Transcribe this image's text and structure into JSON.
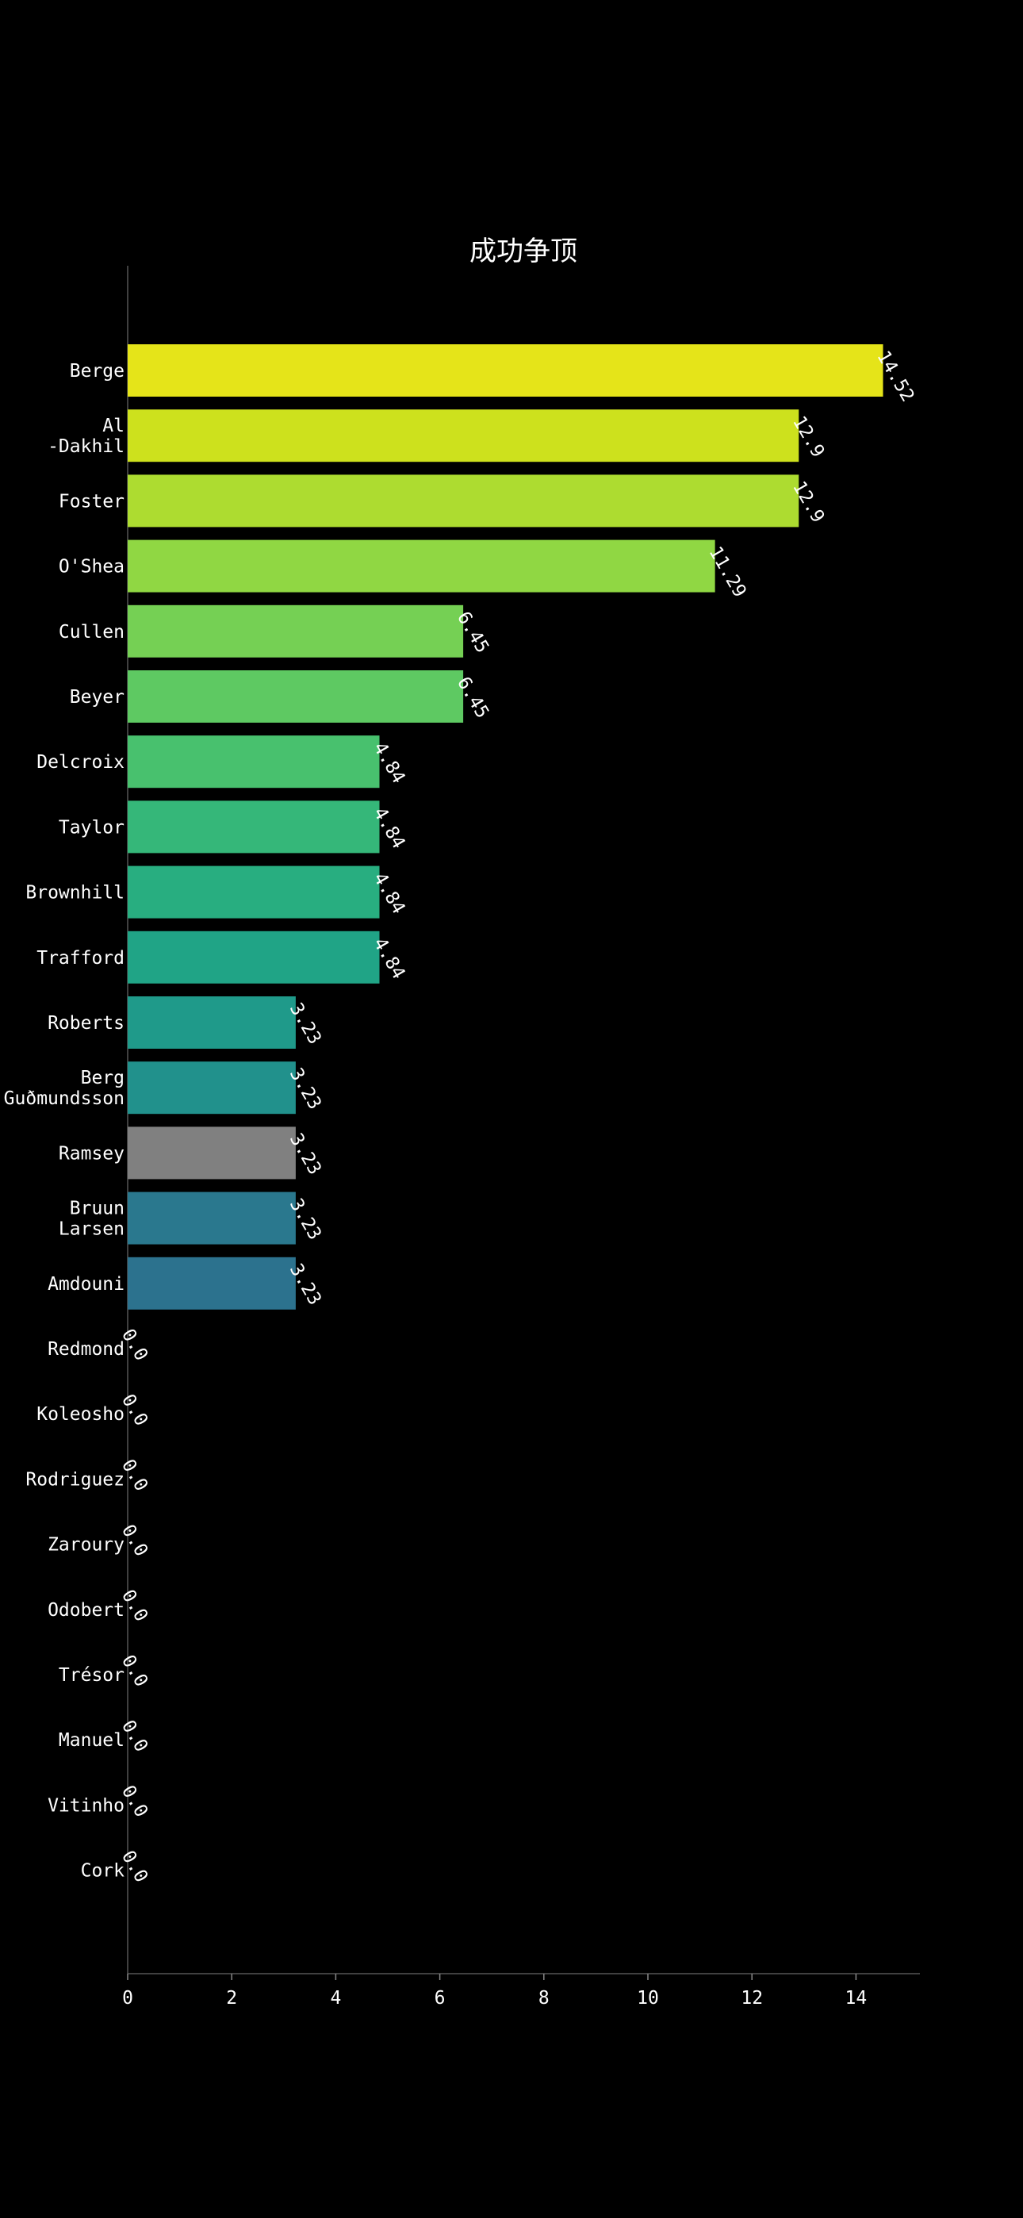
{
  "chart_data": {
    "type": "bar",
    "orientation": "horizontal",
    "title": "成功争顶",
    "xlabel": "",
    "ylabel": "",
    "xlim": [
      0,
      15.2
    ],
    "x_ticks": [
      "0",
      "2",
      "4",
      "6",
      "8",
      "10",
      "12",
      "14"
    ],
    "grid": false,
    "categories": [
      [
        "Berge"
      ],
      [
        "Al",
        "-Dakhil"
      ],
      [
        "Foster"
      ],
      [
        "O'Shea"
      ],
      [
        "Cullen"
      ],
      [
        "Beyer"
      ],
      [
        "Delcroix"
      ],
      [
        "Taylor"
      ],
      [
        "Brownhill"
      ],
      [
        "Trafford"
      ],
      [
        "Roberts"
      ],
      [
        "Berg",
        "Guðmundsson"
      ],
      [
        "Ramsey"
      ],
      [
        "Bruun",
        "Larsen"
      ],
      [
        "Amdouni"
      ],
      [
        "Redmond"
      ],
      [
        "Koleosho"
      ],
      [
        "Rodriguez"
      ],
      [
        "Zaroury"
      ],
      [
        "Odobert"
      ],
      [
        "Trésor"
      ],
      [
        "Manuel"
      ],
      [
        "Vitinho"
      ],
      [
        "Cork"
      ]
    ],
    "values": [
      14.52,
      12.9,
      12.9,
      11.29,
      6.45,
      6.45,
      4.84,
      4.84,
      4.84,
      4.84,
      3.23,
      3.23,
      3.23,
      3.23,
      3.23,
      0.0,
      0.0,
      0.0,
      0.0,
      0.0,
      0.0,
      0.0,
      0.0,
      0.0
    ],
    "value_labels": [
      "14.52",
      "12.9",
      "12.9",
      "11.29",
      "6.45",
      "6.45",
      "4.84",
      "4.84",
      "4.84",
      "4.84",
      "3.23",
      "3.23",
      "3.23",
      "3.23",
      "3.23",
      "0.0",
      "0.0",
      "0.0",
      "0.0",
      "0.0",
      "0.0",
      "0.0",
      "0.0",
      "0.0"
    ],
    "colors": [
      "#e5e419",
      "#cde11d",
      "#addc30",
      "#90d743",
      "#75d054",
      "#5ec962",
      "#48c16e",
      "#35b779",
      "#28ae80",
      "#20a486",
      "#1f9a8a",
      "#21918c",
      "#808080",
      "#2a788e",
      "#2c728e",
      "#2f6b8e",
      "#32648e",
      "#355e8d",
      "#38588c",
      "#3b528b",
      "#3e4c8a",
      "#414487",
      "#443983",
      "#46327e"
    ]
  }
}
